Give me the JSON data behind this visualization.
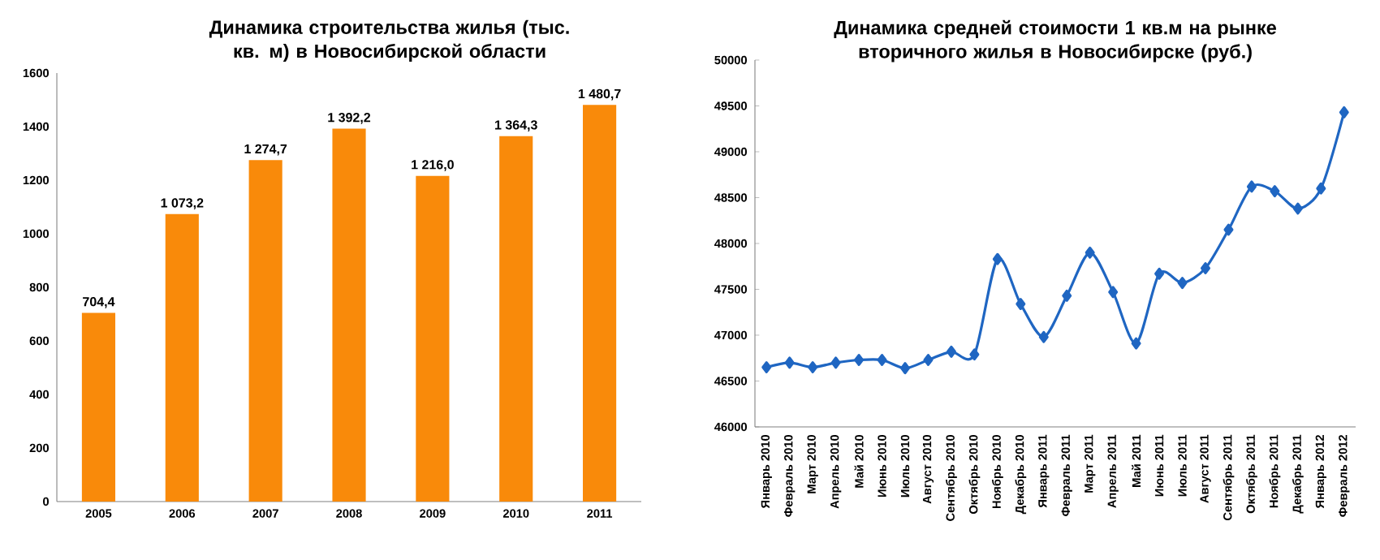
{
  "chart_data": [
    {
      "type": "bar",
      "title": "Динамика строительства жилья (тыс. кв. м) в Новосибирской области",
      "categories": [
        "2005",
        "2006",
        "2007",
        "2008",
        "2009",
        "2010",
        "2011"
      ],
      "values": [
        704.4,
        1073.2,
        1274.7,
        1392.2,
        1216.0,
        1364.3,
        1480.7
      ],
      "value_labels": [
        "704,4",
        "1 073,2",
        "1 274,7",
        "1 392,2",
        "1 216,0",
        "1 364,3",
        "1 480,7"
      ],
      "color": "#f98a0a",
      "ylim": [
        0,
        1600
      ],
      "yticks": [
        0,
        200,
        400,
        600,
        800,
        1000,
        1200,
        1400,
        1600
      ]
    },
    {
      "type": "line",
      "title": "Динамика средней стоимости 1 кв.м на рынке вторичного жилья в Новосибирске (руб.)",
      "categories": [
        "Январь 2010",
        "Февраль 2010",
        "Март 2010",
        "Апрель 2010",
        "Май 2010",
        "Июнь 2010",
        "Июль 2010",
        "Август 2010",
        "Сентябрь 2010",
        "Октябрь 2010",
        "Ноябрь 2010",
        "Декабрь 2010",
        "Январь 2011",
        "Февраль 2011",
        "Март 2011",
        "Апрель 2011",
        "Май 2011",
        "Июнь 2011",
        "Июль 2011",
        "Август 2011",
        "Сентябрь 2011",
        "Октябрь 2011",
        "Ноябрь 2011",
        "Декабрь 2011",
        "Январь 2012",
        "Февраль 2012"
      ],
      "values": [
        46650,
        46700,
        46650,
        46700,
        46730,
        46730,
        46640,
        46730,
        46820,
        46790,
        47830,
        47340,
        46980,
        47430,
        47900,
        47470,
        46910,
        47670,
        47570,
        47730,
        48150,
        48620,
        48570,
        48380,
        48600,
        49430
      ],
      "color": "#1f66c2",
      "marker": "diamond",
      "ylim": [
        46000,
        50000
      ],
      "yticks": [
        46000,
        46500,
        47000,
        47500,
        48000,
        48500,
        49000,
        49500,
        50000
      ]
    }
  ]
}
